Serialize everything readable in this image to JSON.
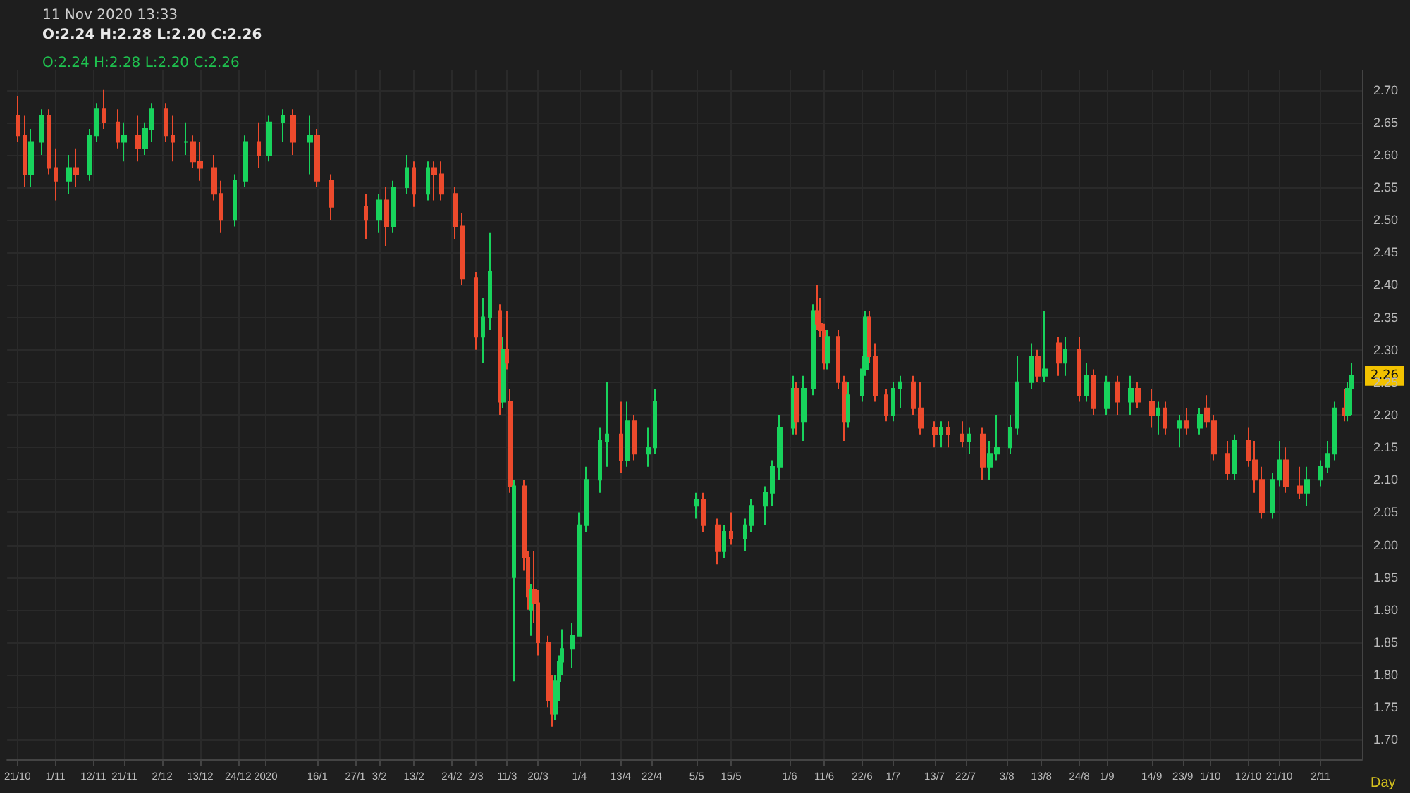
{
  "chart_data": {
    "type": "candlestick",
    "annotations": [
      "11 Nov 2020 13:33",
      "O:2.24 H:2.28 L:2.20 C:2.26",
      "O:2.24 H:2.28 L:2.20 C:2.26",
      {
        "text": "2.26",
        "y": 2.26
      }
    ],
    "xlabel": "Day",
    "grid": true,
    "x": [
      "2019-10-21",
      "2019-10-23",
      "2019-10-25",
      "2019-10-28",
      "2019-10-30",
      "2019-11-01",
      "2019-11-05",
      "2019-11-07",
      "2019-11-11",
      "2019-11-13",
      "2019-11-15",
      "2019-11-19",
      "2019-11-21",
      "2019-11-25",
      "2019-11-27",
      "2019-11-29",
      "2019-12-03",
      "2019-12-05",
      "2019-12-09",
      "2019-12-11",
      "2019-12-13",
      "2019-12-17",
      "2019-12-19",
      "2019-12-23",
      "2019-12-26",
      "2019-12-30",
      "2020-01-02",
      "2020-01-06",
      "2020-01-09",
      "2020-01-14",
      "2020-01-16",
      "2020-01-20",
      "2020-01-30",
      "2020-02-03",
      "2020-02-05",
      "2020-02-07",
      "2020-02-11",
      "2020-02-13",
      "2020-02-17",
      "2020-02-19",
      "2020-02-21",
      "2020-02-25",
      "2020-02-27",
      "2020-03-02",
      "2020-03-04",
      "2020-03-06",
      "2020-03-09",
      "2020-03-10",
      "2020-03-11",
      "2020-03-12",
      "2020-03-13",
      "2020-03-16",
      "2020-03-17",
      "2020-03-18",
      "2020-03-19",
      "2020-03-20",
      "2020-03-23",
      "2020-03-24",
      "2020-03-25",
      "2020-03-26",
      "2020-03-27",
      "2020-03-30",
      "2020-04-01",
      "2020-04-03",
      "2020-04-07",
      "2020-04-09",
      "2020-04-13",
      "2020-04-15",
      "2020-04-17",
      "2020-04-21",
      "2020-04-23",
      "2020-05-05",
      "2020-05-07",
      "2020-05-11",
      "2020-05-13",
      "2020-05-15",
      "2020-05-19",
      "2020-05-21",
      "2020-05-25",
      "2020-05-27",
      "2020-05-29",
      "2020-06-02",
      "2020-06-03",
      "2020-06-05",
      "2020-06-08",
      "2020-06-09",
      "2020-06-10",
      "2020-06-11",
      "2020-06-12",
      "2020-06-15",
      "2020-06-17",
      "2020-06-18",
      "2020-06-22",
      "2020-06-23",
      "2020-06-24",
      "2020-06-26",
      "2020-06-29",
      "2020-07-01",
      "2020-07-03",
      "2020-07-07",
      "2020-07-09",
      "2020-07-13",
      "2020-07-15",
      "2020-07-17",
      "2020-07-21",
      "2020-07-23",
      "2020-07-27",
      "2020-07-29",
      "2020-07-31",
      "2020-08-04",
      "2020-08-06",
      "2020-08-10",
      "2020-08-12",
      "2020-08-14",
      "2020-08-18",
      "2020-08-20",
      "2020-08-24",
      "2020-08-26",
      "2020-08-28",
      "2020-09-01",
      "2020-09-04",
      "2020-09-08",
      "2020-09-10",
      "2020-09-14",
      "2020-09-16",
      "2020-09-18",
      "2020-09-22",
      "2020-09-24",
      "2020-09-28",
      "2020-09-30",
      "2020-10-02",
      "2020-10-06",
      "2020-10-08",
      "2020-10-12",
      "2020-10-14",
      "2020-10-16",
      "2020-10-19",
      "2020-10-21",
      "2020-10-23",
      "2020-10-27",
      "2020-10-29",
      "2020-11-02",
      "2020-11-04",
      "2020-11-06",
      "2020-11-09",
      "2020-11-10",
      "2020-11-11"
    ],
    "ohlc": [
      [
        2.66,
        2.69,
        2.62,
        2.63
      ],
      [
        2.63,
        2.66,
        2.55,
        2.57
      ],
      [
        2.57,
        2.64,
        2.55,
        2.62
      ],
      [
        2.62,
        2.67,
        2.6,
        2.66
      ],
      [
        2.66,
        2.67,
        2.57,
        2.58
      ],
      [
        2.58,
        2.61,
        2.53,
        2.56
      ],
      [
        2.56,
        2.6,
        2.54,
        2.58
      ],
      [
        2.58,
        2.61,
        2.55,
        2.57
      ],
      [
        2.57,
        2.64,
        2.56,
        2.63
      ],
      [
        2.63,
        2.68,
        2.62,
        2.67
      ],
      [
        2.67,
        2.7,
        2.64,
        2.65
      ],
      [
        2.65,
        2.67,
        2.61,
        2.62
      ],
      [
        2.62,
        2.65,
        2.59,
        2.63
      ],
      [
        2.63,
        2.66,
        2.59,
        2.61
      ],
      [
        2.61,
        2.65,
        2.6,
        2.64
      ],
      [
        2.64,
        2.68,
        2.62,
        2.67
      ],
      [
        2.67,
        2.68,
        2.62,
        2.63
      ],
      [
        2.63,
        2.66,
        2.59,
        2.62
      ],
      [
        2.62,
        2.65,
        2.6,
        2.62
      ],
      [
        2.62,
        2.63,
        2.58,
        2.59
      ],
      [
        2.59,
        2.62,
        2.56,
        2.58
      ],
      [
        2.58,
        2.6,
        2.53,
        2.54
      ],
      [
        2.54,
        2.56,
        2.48,
        2.5
      ],
      [
        2.5,
        2.57,
        2.49,
        2.56
      ],
      [
        2.56,
        2.63,
        2.55,
        2.62
      ],
      [
        2.62,
        2.65,
        2.58,
        2.6
      ],
      [
        2.6,
        2.66,
        2.59,
        2.65
      ],
      [
        2.65,
        2.67,
        2.62,
        2.66
      ],
      [
        2.66,
        2.67,
        2.6,
        2.62
      ],
      [
        2.62,
        2.66,
        2.57,
        2.63
      ],
      [
        2.63,
        2.64,
        2.55,
        2.56
      ],
      [
        2.56,
        2.57,
        2.5,
        2.52
      ],
      [
        2.52,
        2.54,
        2.47,
        2.5
      ],
      [
        2.5,
        2.54,
        2.48,
        2.53
      ],
      [
        2.53,
        2.55,
        2.46,
        2.49
      ],
      [
        2.49,
        2.56,
        2.48,
        2.55
      ],
      [
        2.55,
        2.6,
        2.54,
        2.58
      ],
      [
        2.58,
        2.59,
        2.52,
        2.54
      ],
      [
        2.54,
        2.59,
        2.53,
        2.58
      ],
      [
        2.58,
        2.59,
        2.53,
        2.57
      ],
      [
        2.57,
        2.59,
        2.53,
        2.54
      ],
      [
        2.54,
        2.55,
        2.47,
        2.49
      ],
      [
        2.49,
        2.51,
        2.4,
        2.41
      ],
      [
        2.41,
        2.42,
        2.3,
        2.32
      ],
      [
        2.32,
        2.38,
        2.28,
        2.35
      ],
      [
        2.35,
        2.48,
        2.33,
        2.42
      ],
      [
        2.36,
        2.37,
        2.2,
        2.22
      ],
      [
        2.22,
        2.32,
        2.21,
        2.3
      ],
      [
        2.3,
        2.36,
        2.27,
        2.28
      ],
      [
        2.22,
        2.24,
        2.08,
        2.09
      ],
      [
        1.95,
        2.1,
        1.79,
        2.09
      ],
      [
        2.09,
        2.1,
        1.96,
        1.98
      ],
      [
        1.98,
        1.99,
        1.9,
        1.92
      ],
      [
        1.9,
        1.94,
        1.86,
        1.93
      ],
      [
        1.93,
        1.99,
        1.88,
        1.91
      ],
      [
        1.91,
        1.93,
        1.83,
        1.85
      ],
      [
        1.85,
        1.86,
        1.75,
        1.76
      ],
      [
        1.76,
        1.8,
        1.72,
        1.74
      ],
      [
        1.74,
        1.8,
        1.73,
        1.79
      ],
      [
        1.79,
        1.83,
        1.76,
        1.82
      ],
      [
        1.82,
        1.87,
        1.8,
        1.84
      ],
      [
        1.84,
        1.88,
        1.81,
        1.86
      ],
      [
        1.86,
        2.05,
        1.86,
        2.03
      ],
      [
        2.03,
        2.12,
        2.02,
        2.1
      ],
      [
        2.1,
        2.18,
        2.08,
        2.16
      ],
      [
        2.16,
        2.25,
        2.12,
        2.17
      ],
      [
        2.17,
        2.22,
        2.11,
        2.13
      ],
      [
        2.13,
        2.22,
        2.12,
        2.19
      ],
      [
        2.19,
        2.2,
        2.13,
        2.14
      ],
      [
        2.14,
        2.18,
        2.12,
        2.15
      ],
      [
        2.15,
        2.24,
        2.14,
        2.22
      ],
      [
        2.06,
        2.08,
        2.04,
        2.07
      ],
      [
        2.07,
        2.08,
        2.02,
        2.03
      ],
      [
        2.03,
        2.04,
        1.97,
        1.99
      ],
      [
        1.99,
        2.03,
        1.98,
        2.02
      ],
      [
        2.02,
        2.05,
        2.0,
        2.01
      ],
      [
        2.01,
        2.04,
        1.99,
        2.03
      ],
      [
        2.03,
        2.07,
        2.02,
        2.06
      ],
      [
        2.06,
        2.09,
        2.03,
        2.08
      ],
      [
        2.08,
        2.13,
        2.06,
        2.12
      ],
      [
        2.12,
        2.2,
        2.1,
        2.18
      ],
      [
        2.18,
        2.26,
        2.17,
        2.24
      ],
      [
        2.24,
        2.25,
        2.17,
        2.19
      ],
      [
        2.19,
        2.26,
        2.16,
        2.24
      ],
      [
        2.24,
        2.37,
        2.23,
        2.36
      ],
      [
        2.36,
        2.4,
        2.33,
        2.34
      ],
      [
        2.34,
        2.38,
        2.32,
        2.33
      ],
      [
        2.33,
        2.34,
        2.27,
        2.28
      ],
      [
        2.28,
        2.33,
        2.27,
        2.32
      ],
      [
        2.32,
        2.33,
        2.24,
        2.25
      ],
      [
        2.25,
        2.26,
        2.16,
        2.19
      ],
      [
        2.19,
        2.25,
        2.18,
        2.23
      ],
      [
        2.23,
        2.29,
        2.22,
        2.27
      ],
      [
        2.27,
        2.36,
        2.26,
        2.35
      ],
      [
        2.35,
        2.36,
        2.28,
        2.29
      ],
      [
        2.29,
        2.31,
        2.22,
        2.23
      ],
      [
        2.23,
        2.24,
        2.19,
        2.2
      ],
      [
        2.2,
        2.25,
        2.19,
        2.24
      ],
      [
        2.24,
        2.26,
        2.21,
        2.25
      ],
      [
        2.25,
        2.26,
        2.2,
        2.21
      ],
      [
        2.21,
        2.25,
        2.17,
        2.18
      ],
      [
        2.18,
        2.19,
        2.15,
        2.17
      ],
      [
        2.17,
        2.19,
        2.15,
        2.18
      ],
      [
        2.18,
        2.19,
        2.15,
        2.17
      ],
      [
        2.17,
        2.19,
        2.15,
        2.16
      ],
      [
        2.16,
        2.18,
        2.14,
        2.17
      ],
      [
        2.17,
        2.18,
        2.1,
        2.12
      ],
      [
        2.12,
        2.16,
        2.1,
        2.14
      ],
      [
        2.14,
        2.2,
        2.13,
        2.15
      ],
      [
        2.15,
        2.2,
        2.14,
        2.18
      ],
      [
        2.18,
        2.29,
        2.17,
        2.25
      ],
      [
        2.25,
        2.31,
        2.24,
        2.29
      ],
      [
        2.29,
        2.3,
        2.25,
        2.26
      ],
      [
        2.26,
        2.36,
        2.25,
        2.27
      ],
      [
        2.31,
        2.32,
        2.26,
        2.28
      ],
      [
        2.28,
        2.32,
        2.26,
        2.3
      ],
      [
        2.3,
        2.32,
        2.22,
        2.23
      ],
      [
        2.23,
        2.28,
        2.22,
        2.26
      ],
      [
        2.26,
        2.27,
        2.2,
        2.21
      ],
      [
        2.21,
        2.26,
        2.2,
        2.25
      ],
      [
        2.25,
        2.26,
        2.2,
        2.22
      ],
      [
        2.22,
        2.26,
        2.2,
        2.24
      ],
      [
        2.24,
        2.25,
        2.21,
        2.22
      ],
      [
        2.22,
        2.24,
        2.18,
        2.2
      ],
      [
        2.2,
        2.22,
        2.17,
        2.21
      ],
      [
        2.21,
        2.22,
        2.17,
        2.18
      ],
      [
        2.18,
        2.2,
        2.15,
        2.19
      ],
      [
        2.19,
        2.21,
        2.17,
        2.18
      ],
      [
        2.18,
        2.21,
        2.17,
        2.2
      ],
      [
        2.21,
        2.23,
        2.18,
        2.19
      ],
      [
        2.19,
        2.2,
        2.13,
        2.14
      ],
      [
        2.14,
        2.16,
        2.1,
        2.11
      ],
      [
        2.11,
        2.17,
        2.1,
        2.16
      ],
      [
        2.16,
        2.18,
        2.12,
        2.13
      ],
      [
        2.13,
        2.16,
        2.08,
        2.1
      ],
      [
        2.1,
        2.12,
        2.04,
        2.05
      ],
      [
        2.05,
        2.11,
        2.04,
        2.1
      ],
      [
        2.1,
        2.16,
        2.09,
        2.13
      ],
      [
        2.13,
        2.15,
        2.08,
        2.09
      ],
      [
        2.09,
        2.12,
        2.07,
        2.08
      ],
      [
        2.08,
        2.12,
        2.06,
        2.1
      ],
      [
        2.1,
        2.13,
        2.09,
        2.12
      ],
      [
        2.12,
        2.16,
        2.11,
        2.14
      ],
      [
        2.14,
        2.22,
        2.13,
        2.21
      ],
      [
        2.21,
        2.24,
        2.19,
        2.2
      ],
      [
        2.2,
        2.25,
        2.19,
        2.24
      ],
      [
        2.24,
        2.28,
        2.2,
        2.26
      ]
    ],
    "xlim": [
      "2019-10-18",
      "2020-11-14"
    ],
    "xticks": [
      {
        "value": "2019-10-21",
        "label": "21/10"
      },
      {
        "value": "2019-11-01",
        "label": "1/11"
      },
      {
        "value": "2019-11-12",
        "label": "12/11"
      },
      {
        "value": "2019-11-21",
        "label": "21/11"
      },
      {
        "value": "2019-12-02",
        "label": "2/12"
      },
      {
        "value": "2019-12-13",
        "label": "13/12"
      },
      {
        "value": "2019-12-24",
        "label": "24/12"
      },
      {
        "value": "2020-01-01",
        "label": "2020"
      },
      {
        "value": "2020-01-16",
        "label": "16/1"
      },
      {
        "value": "2020-01-27",
        "label": "27/1"
      },
      {
        "value": "2020-02-03",
        "label": "3/2"
      },
      {
        "value": "2020-02-13",
        "label": "13/2"
      },
      {
        "value": "2020-02-24",
        "label": "24/2"
      },
      {
        "value": "2020-03-02",
        "label": "2/3"
      },
      {
        "value": "2020-03-11",
        "label": "11/3"
      },
      {
        "value": "2020-03-20",
        "label": "20/3"
      },
      {
        "value": "2020-04-01",
        "label": "1/4"
      },
      {
        "value": "2020-04-13",
        "label": "13/4"
      },
      {
        "value": "2020-04-22",
        "label": "22/4"
      },
      {
        "value": "2020-05-05",
        "label": "5/5"
      },
      {
        "value": "2020-05-15",
        "label": "15/5"
      },
      {
        "value": "2020-06-01",
        "label": "1/6"
      },
      {
        "value": "2020-06-11",
        "label": "11/6"
      },
      {
        "value": "2020-06-22",
        "label": "22/6"
      },
      {
        "value": "2020-07-01",
        "label": "1/7"
      },
      {
        "value": "2020-07-13",
        "label": "13/7"
      },
      {
        "value": "2020-07-22",
        "label": "22/7"
      },
      {
        "value": "2020-08-03",
        "label": "3/8"
      },
      {
        "value": "2020-08-13",
        "label": "13/8"
      },
      {
        "value": "2020-08-24",
        "label": "24/8"
      },
      {
        "value": "2020-09-01",
        "label": "1/9"
      },
      {
        "value": "2020-09-14",
        "label": "14/9"
      },
      {
        "value": "2020-09-23",
        "label": "23/9"
      },
      {
        "value": "2020-10-01",
        "label": "1/10"
      },
      {
        "value": "2020-10-12",
        "label": "12/10"
      },
      {
        "value": "2020-10-21",
        "label": "21/10"
      },
      {
        "value": "2020-11-02",
        "label": "2/11"
      }
    ],
    "ylim": [
      1.67,
      2.73
    ],
    "yticks": [
      {
        "value": 1.7,
        "label": "1.70"
      },
      {
        "value": 1.75,
        "label": "1.75"
      },
      {
        "value": 1.8,
        "label": "1.80"
      },
      {
        "value": 1.85,
        "label": "1.85"
      },
      {
        "value": 1.9,
        "label": "1.90"
      },
      {
        "value": 1.95,
        "label": "1.95"
      },
      {
        "value": 2.0,
        "label": "2.00"
      },
      {
        "value": 2.05,
        "label": "2.05"
      },
      {
        "value": 2.1,
        "label": "2.10"
      },
      {
        "value": 2.15,
        "label": "2.15"
      },
      {
        "value": 2.2,
        "label": "2.20"
      },
      {
        "value": 2.25,
        "label": "2.25"
      },
      {
        "value": 2.3,
        "label": "2.30"
      },
      {
        "value": 2.35,
        "label": "2.35"
      },
      {
        "value": 2.4,
        "label": "2.40"
      },
      {
        "value": 2.45,
        "label": "2.45"
      },
      {
        "value": 2.5,
        "label": "2.50"
      },
      {
        "value": 2.55,
        "label": "2.55"
      },
      {
        "value": 2.6,
        "label": "2.60"
      },
      {
        "value": 2.65,
        "label": "2.65"
      },
      {
        "value": 2.7,
        "label": "2.70"
      }
    ]
  }
}
